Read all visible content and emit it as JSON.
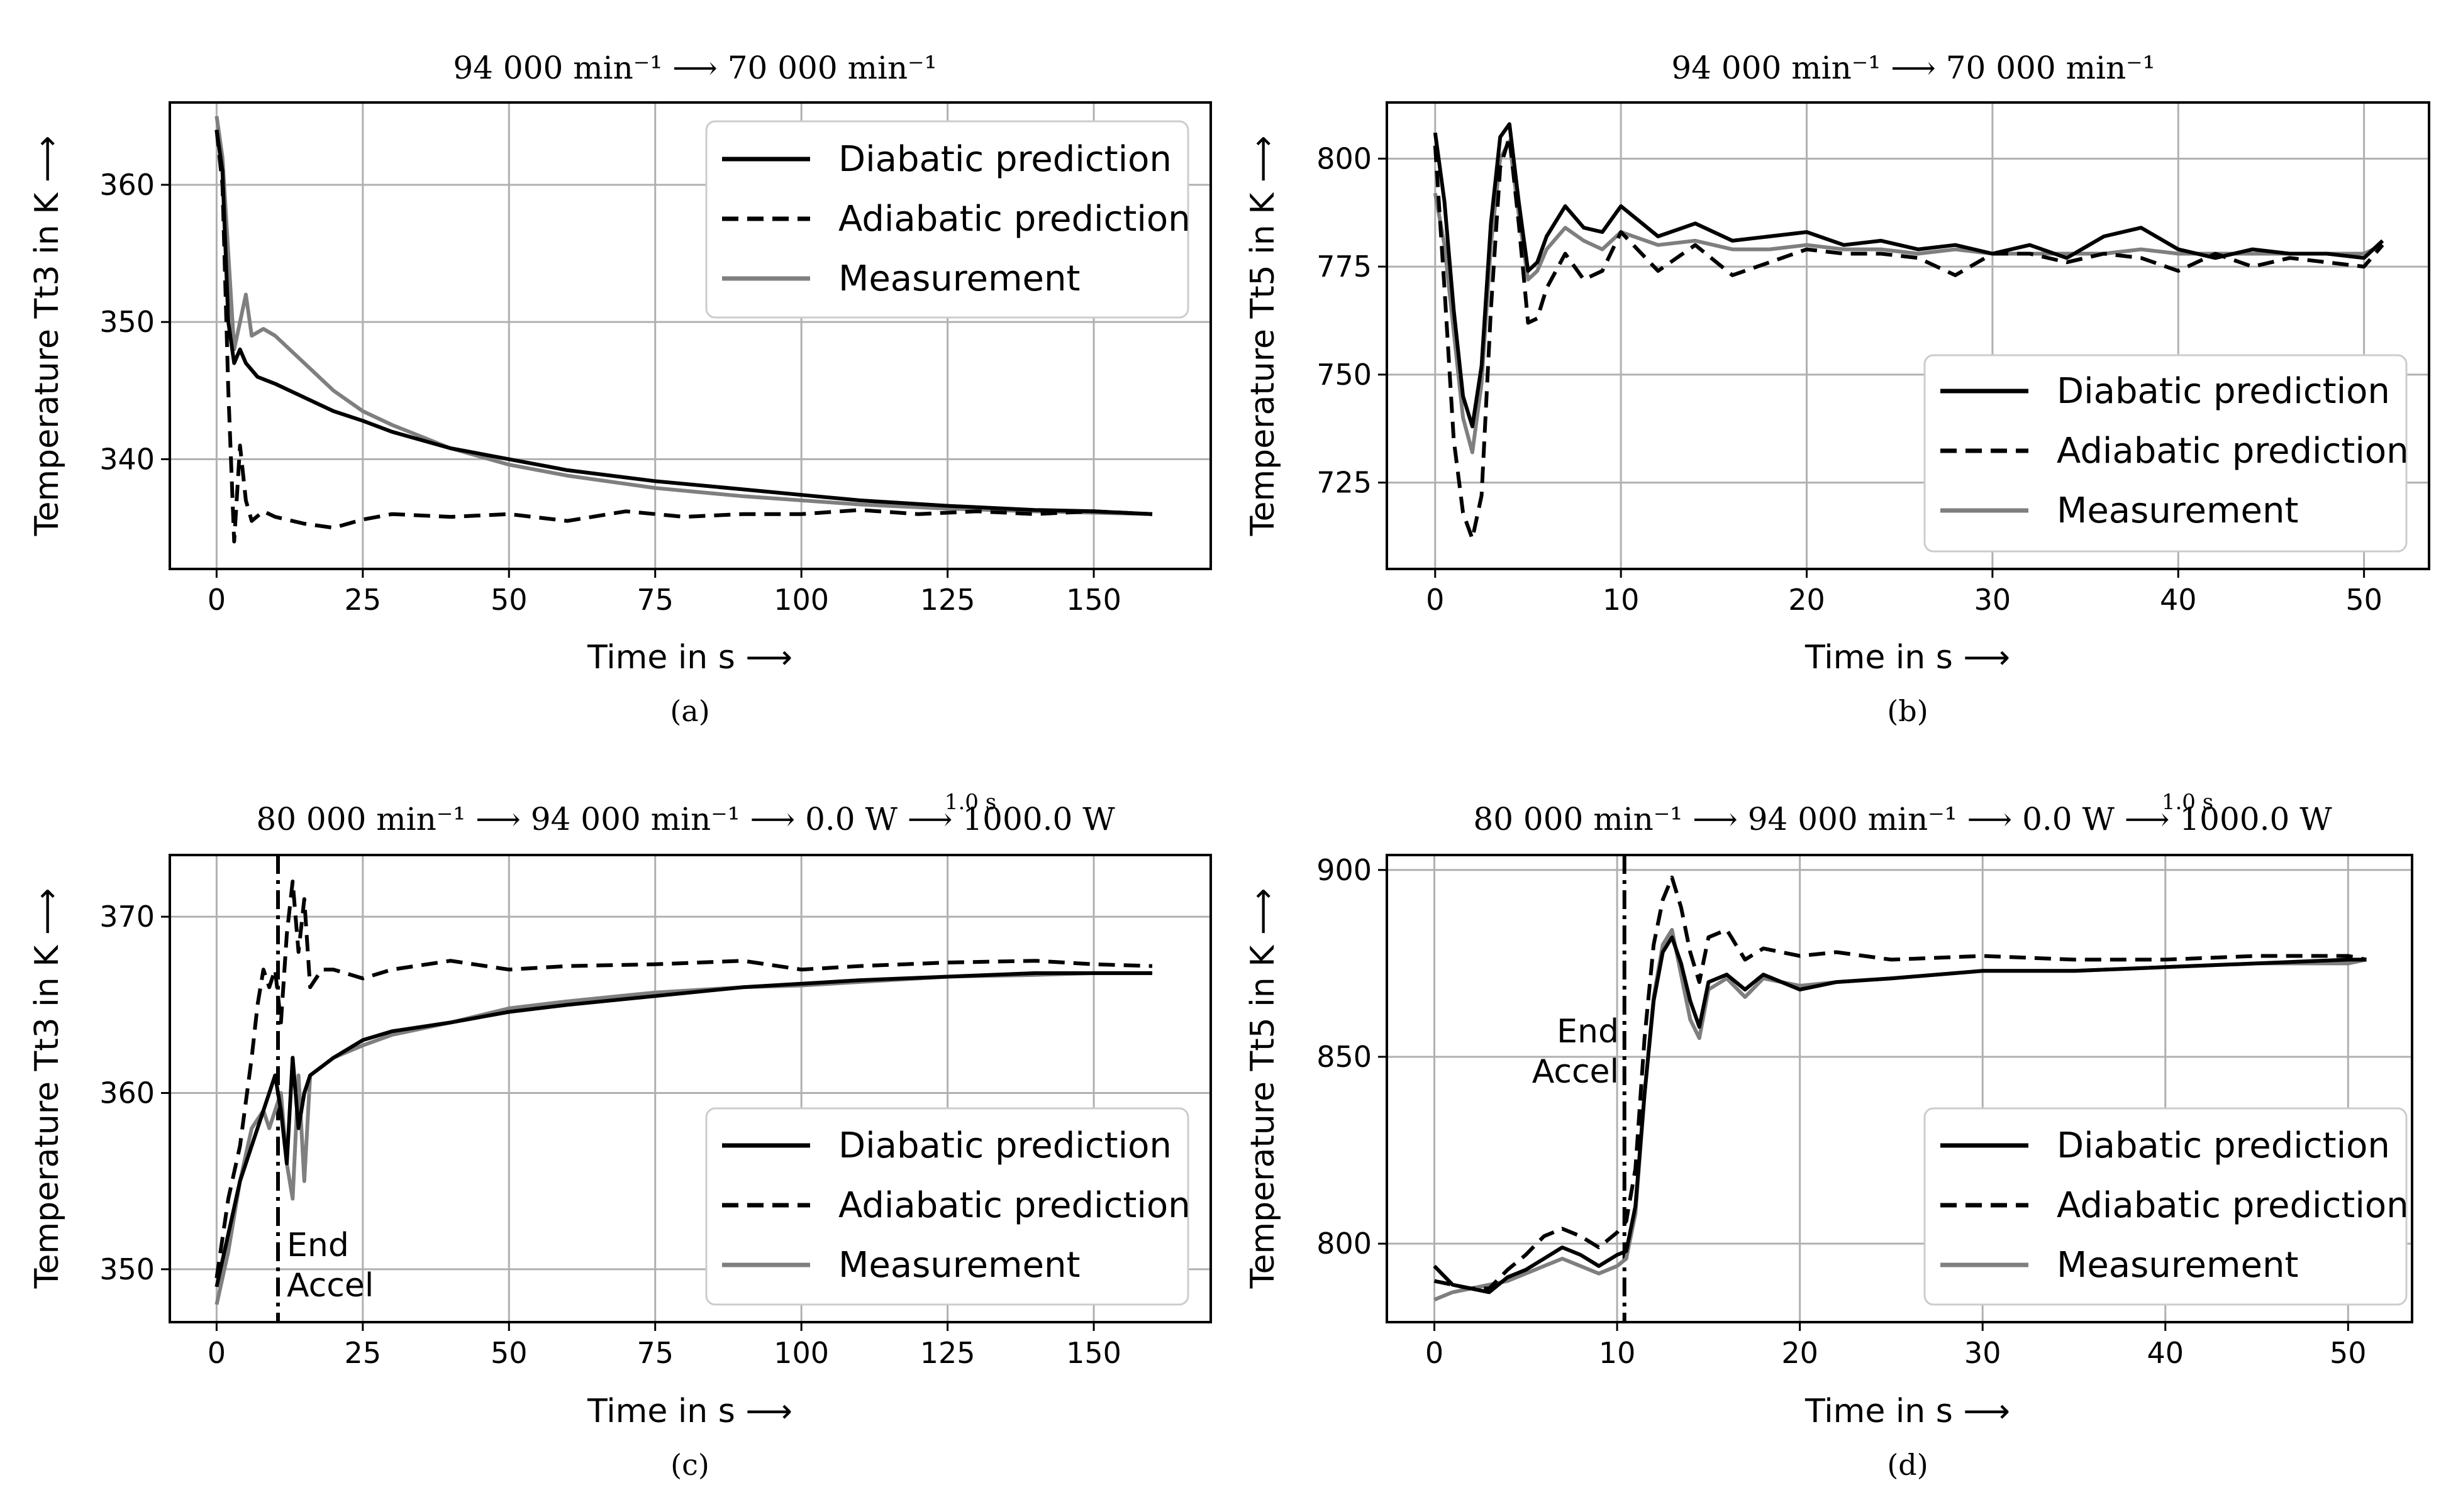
{
  "figure": {
    "panels": [
      {
        "id": "a",
        "title": "94 000 min⁻¹ ⟶ 70 000 min⁻¹",
        "caption": "(a)",
        "ylabel": "Temperature Tt3 in K ⟶",
        "xlabel": "Time in s ⟶",
        "annotation": null
      },
      {
        "id": "b",
        "title": "94 000 min⁻¹ ⟶ 70 000 min⁻¹",
        "caption": "(b)",
        "ylabel": "Temperature Tt5 in K ⟶",
        "xlabel": "Time in s ⟶",
        "annotation": null
      },
      {
        "id": "c",
        "title": "80 000 min⁻¹ ⟶ 94 000 min⁻¹ ⟶ 0.0 W ⟶ 1000.0 W",
        "title_step": "1.0 s",
        "caption": "(c)",
        "ylabel": "Temperature Tt3 in K ⟶",
        "xlabel": "Time in s ⟶",
        "annotation": {
          "line1": "End",
          "line2": "Accel"
        }
      },
      {
        "id": "d",
        "title": "80 000 min⁻¹ ⟶ 94 000 min⁻¹ ⟶ 0.0 W ⟶ 1000.0 W",
        "title_step": "1.0 s",
        "caption": "(d)",
        "ylabel": "Temperature Tt5 in K ⟶",
        "xlabel": "Time in s ⟶",
        "annotation": {
          "line1": "End",
          "line2": "Accel"
        }
      }
    ],
    "legend": {
      "diabatic": "Diabatic prediction",
      "adiabatic": "Adiabatic prediction",
      "measurement": "Measurement"
    },
    "colors": {
      "diabatic": "#000000",
      "adiabatic": "#000000",
      "measurement": "#7f7f7f",
      "grid": "#b0b0b0"
    }
  },
  "chart_data": [
    {
      "type": "line",
      "panel": "a",
      "title": "94 000 min⁻¹ ⟶ 70 000 min⁻¹",
      "xlabel": "Time in s ⟶",
      "ylabel": "Temperature Tt3 in K ⟶",
      "xlim": [
        -8,
        170
      ],
      "ylim": [
        332,
        366
      ],
      "xticks": [
        0,
        25,
        50,
        75,
        100,
        125,
        150
      ],
      "yticks": [
        340,
        350,
        360
      ],
      "legend_loc": "upper right",
      "series": [
        {
          "name": "Diabatic prediction",
          "style": "solid",
          "x": [
            0,
            1,
            2,
            3,
            4,
            5,
            7,
            10,
            15,
            20,
            25,
            30,
            40,
            50,
            60,
            75,
            90,
            100,
            110,
            125,
            140,
            150,
            160
          ],
          "y": [
            364,
            361,
            350,
            347,
            348,
            347,
            346,
            345.5,
            344.5,
            343.5,
            342.8,
            342,
            340.8,
            340,
            339.2,
            338.4,
            337.8,
            337.4,
            337,
            336.6,
            336.3,
            336.2,
            336
          ]
        },
        {
          "name": "Adiabatic prediction",
          "style": "dashed",
          "x": [
            0,
            1,
            2,
            3,
            4,
            5,
            6,
            8,
            10,
            15,
            20,
            25,
            30,
            40,
            50,
            60,
            70,
            80,
            90,
            100,
            110,
            120,
            130,
            140,
            150,
            160
          ],
          "y": [
            364,
            360,
            345,
            334,
            341,
            337,
            335.5,
            336.2,
            335.8,
            335.3,
            335,
            335.6,
            336,
            335.8,
            336,
            335.5,
            336.2,
            335.8,
            336,
            336,
            336.3,
            336,
            336.2,
            336,
            336.2,
            336
          ]
        },
        {
          "name": "Measurement",
          "style": "solid",
          "x": [
            0,
            1,
            2,
            3,
            4,
            5,
            6,
            8,
            10,
            15,
            20,
            25,
            30,
            40,
            50,
            60,
            75,
            90,
            100,
            110,
            125,
            140,
            150,
            160
          ],
          "y": [
            365,
            362,
            355,
            348,
            350,
            352,
            349,
            349.5,
            349,
            347,
            345,
            343.5,
            342.5,
            340.8,
            339.6,
            338.8,
            337.9,
            337.3,
            337,
            336.7,
            336.4,
            336.2,
            336.1,
            336
          ]
        }
      ]
    },
    {
      "type": "line",
      "panel": "b",
      "title": "94 000 min⁻¹ ⟶ 70 000 min⁻¹",
      "xlabel": "Time in s ⟶",
      "ylabel": "Temperature Tt5 in K ⟶",
      "xlim": [
        -2.6,
        53.5
      ],
      "ylim": [
        705,
        813
      ],
      "xticks": [
        0,
        10,
        20,
        30,
        40,
        50
      ],
      "yticks": [
        725,
        750,
        775,
        800
      ],
      "legend_loc": "lower right",
      "series": [
        {
          "name": "Diabatic prediction",
          "style": "solid",
          "x": [
            0,
            0.5,
            1,
            1.5,
            2,
            2.5,
            3,
            3.5,
            4,
            4.5,
            5,
            5.5,
            6,
            7,
            8,
            9,
            10,
            12,
            14,
            16,
            18,
            20,
            22,
            24,
            26,
            28,
            30,
            32,
            34,
            36,
            38,
            40,
            42,
            44,
            46,
            48,
            50,
            51
          ],
          "y": [
            806,
            790,
            765,
            745,
            738,
            752,
            785,
            805,
            808,
            790,
            774,
            776,
            782,
            789,
            784,
            783,
            789,
            782,
            785,
            781,
            782,
            783,
            780,
            781,
            779,
            780,
            778,
            780,
            777,
            782,
            784,
            779,
            777,
            779,
            778,
            778,
            777,
            781
          ]
        },
        {
          "name": "Adiabatic prediction",
          "style": "solid_dashed",
          "x": [
            0,
            0.5,
            1,
            1.5,
            2,
            2.5,
            3,
            3.5,
            4,
            4.5,
            5,
            5.5,
            6,
            7,
            8,
            9,
            10,
            12,
            14,
            16,
            18,
            20,
            22,
            24,
            26,
            28,
            30,
            32,
            34,
            36,
            38,
            40,
            42,
            44,
            46,
            48,
            50,
            51
          ],
          "y": [
            803,
            770,
            735,
            718,
            712,
            722,
            765,
            798,
            805,
            785,
            762,
            763,
            770,
            778,
            772,
            774,
            783,
            774,
            780,
            773,
            776,
            779,
            778,
            778,
            777,
            773,
            778,
            778,
            776,
            778,
            777,
            774,
            778,
            775,
            777,
            776,
            775,
            780
          ]
        },
        {
          "name": "Measurement",
          "style": "solid",
          "x": [
            0,
            0.5,
            1,
            1.5,
            2,
            2.5,
            3,
            3.5,
            4,
            4.5,
            5,
            5.5,
            6,
            7,
            8,
            9,
            10,
            12,
            14,
            16,
            18,
            20,
            22,
            24,
            26,
            28,
            30,
            32,
            34,
            36,
            38,
            40,
            42,
            44,
            46,
            48,
            50,
            51
          ],
          "y": [
            792,
            780,
            760,
            740,
            732,
            748,
            780,
            800,
            804,
            787,
            772,
            774,
            779,
            784,
            781,
            779,
            783,
            780,
            781,
            779,
            779,
            780,
            779,
            779,
            778,
            779,
            778,
            778,
            778,
            778,
            779,
            778,
            778,
            778,
            778,
            778,
            778,
            780
          ]
        }
      ]
    },
    {
      "type": "line",
      "panel": "c",
      "title": "80 000 min⁻¹ ⟶ 94 000 min⁻¹ ⟶ 0.0 W ⟶ 1000.0 W",
      "xlabel": "Time in s ⟶",
      "ylabel": "Temperature Tt3 in K ⟶",
      "xlim": [
        -8,
        170
      ],
      "ylim": [
        347,
        373.5
      ],
      "xticks": [
        0,
        25,
        50,
        75,
        100,
        125,
        150
      ],
      "yticks": [
        350,
        360,
        370
      ],
      "legend_loc": "lower right",
      "vline": {
        "x": 10.5,
        "style": "dashdot",
        "label": "End Accel"
      },
      "series": [
        {
          "name": "Diabatic prediction",
          "style": "solid",
          "x": [
            0,
            2,
            4,
            6,
            8,
            10,
            11,
            12,
            13,
            14,
            15,
            16,
            18,
            20,
            25,
            30,
            40,
            50,
            60,
            75,
            90,
            100,
            110,
            125,
            140,
            150,
            160
          ],
          "y": [
            349,
            352,
            355,
            357,
            359,
            361,
            359,
            356,
            362,
            358,
            360,
            361,
            361.5,
            362,
            363,
            363.5,
            364,
            364.6,
            365,
            365.5,
            366,
            366.2,
            366.4,
            366.6,
            366.8,
            366.8,
            366.8
          ]
        },
        {
          "name": "Adiabatic prediction",
          "style": "dashed",
          "x": [
            0,
            2,
            4,
            6,
            7,
            8,
            9,
            10,
            11,
            12,
            13,
            14,
            15,
            16,
            18,
            20,
            25,
            30,
            40,
            50,
            60,
            75,
            90,
            100,
            110,
            125,
            140,
            150,
            160
          ],
          "y": [
            349.5,
            354,
            357,
            362,
            365,
            367,
            366,
            367,
            364,
            369,
            372,
            368,
            371,
            366,
            367,
            367,
            366.5,
            367,
            367.5,
            367,
            367.2,
            367.3,
            367.5,
            367,
            367.2,
            367.4,
            367.5,
            367.3,
            367.2
          ]
        },
        {
          "name": "Measurement",
          "style": "solid",
          "x": [
            0,
            2,
            4,
            6,
            8,
            9,
            10,
            11,
            12,
            13,
            14,
            15,
            16,
            18,
            20,
            25,
            30,
            40,
            50,
            60,
            75,
            90,
            100,
            110,
            125,
            140,
            150,
            160
          ],
          "y": [
            348,
            351,
            355,
            358,
            359,
            358,
            359,
            360,
            356,
            354,
            361,
            355,
            361,
            361.5,
            362,
            362.7,
            363.3,
            364,
            364.8,
            365.2,
            365.7,
            366,
            366.1,
            366.3,
            366.6,
            366.7,
            366.8,
            366.8
          ]
        }
      ]
    },
    {
      "type": "line",
      "panel": "d",
      "title": "80 000 min⁻¹ ⟶ 94 000 min⁻¹ ⟶ 0.0 W ⟶ 1000.0 W",
      "xlabel": "Time in s ⟶",
      "ylabel": "Temperature Tt5 in K ⟶",
      "xlim": [
        -2.6,
        53.5
      ],
      "ylim": [
        779,
        904
      ],
      "xticks": [
        0,
        10,
        20,
        30,
        40,
        50
      ],
      "yticks": [
        800,
        850,
        900
      ],
      "legend_loc": "lower right",
      "vline": {
        "x": 10.4,
        "style": "dashdot",
        "label": "End Accel"
      },
      "series": [
        {
          "name": "Diabatic prediction",
          "style": "solid",
          "x": [
            0,
            1,
            2,
            3,
            4,
            5,
            6,
            7,
            8,
            9,
            10,
            10.5,
            11,
            11.5,
            12,
            12.5,
            13,
            13.5,
            14,
            14.5,
            15,
            16,
            17,
            18,
            20,
            22,
            25,
            30,
            35,
            40,
            45,
            50,
            51
          ],
          "y": [
            794,
            789,
            788,
            787,
            791,
            793,
            796,
            799,
            797,
            794,
            797,
            798,
            810,
            840,
            865,
            878,
            882,
            875,
            865,
            858,
            870,
            872,
            868,
            872,
            868,
            870,
            871,
            873,
            873,
            874,
            875,
            876,
            876
          ]
        },
        {
          "name": "Adiabatic prediction",
          "style": "dashed",
          "x": [
            0,
            1,
            2,
            3,
            4,
            5,
            6,
            7,
            8,
            9,
            10,
            10.5,
            11,
            11.5,
            12,
            12.5,
            13,
            13.5,
            14,
            14.5,
            15,
            16,
            17,
            18,
            20,
            22,
            25,
            30,
            35,
            40,
            45,
            50,
            51
          ],
          "y": [
            790,
            789,
            788,
            788,
            793,
            797,
            802,
            804,
            802,
            799,
            803,
            806,
            820,
            855,
            880,
            892,
            898,
            890,
            878,
            870,
            882,
            884,
            876,
            879,
            877,
            878,
            876,
            877,
            876,
            876,
            877,
            877,
            876
          ]
        },
        {
          "name": "Measurement",
          "style": "solid",
          "x": [
            0,
            1,
            2,
            3,
            4,
            5,
            6,
            7,
            8,
            9,
            10,
            10.5,
            11,
            11.5,
            12,
            12.5,
            13,
            13.5,
            14,
            14.5,
            15,
            16,
            17,
            18,
            20,
            22,
            25,
            30,
            35,
            40,
            45,
            50,
            51
          ],
          "y": [
            785,
            787,
            788,
            789,
            790,
            792,
            794,
            796,
            794,
            792,
            794,
            796,
            808,
            840,
            866,
            880,
            884,
            872,
            860,
            855,
            868,
            871,
            866,
            871,
            869,
            870,
            871,
            873,
            873,
            874,
            875,
            875,
            876
          ]
        }
      ]
    }
  ]
}
